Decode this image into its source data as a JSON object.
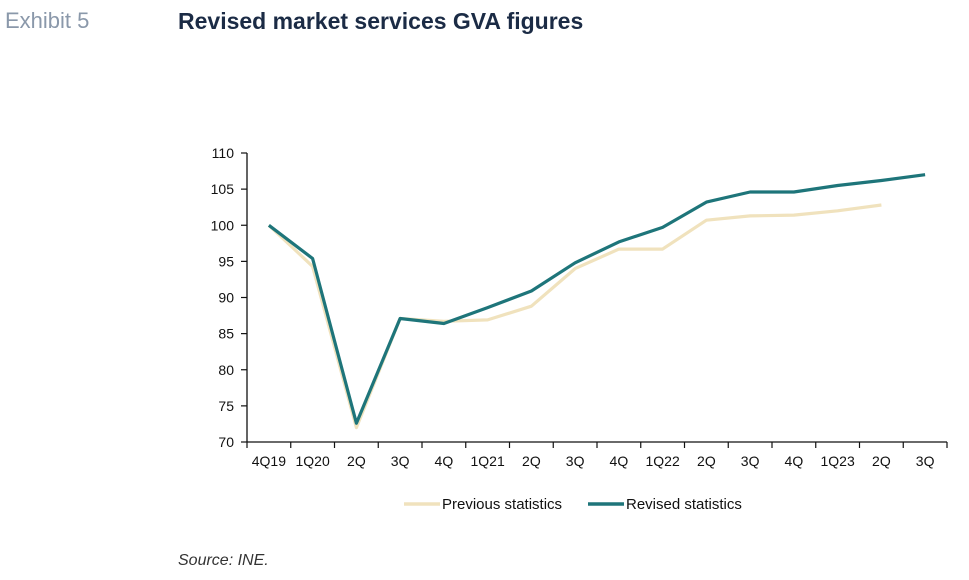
{
  "header": {
    "exhibit": "Exhibit 5",
    "title": "Revised market services GVA figures"
  },
  "source": "Source: INE.",
  "chart_data": {
    "type": "line",
    "title": "Revised market services GVA figures",
    "xlabel": "",
    "ylabel": "",
    "categories": [
      "4Q19",
      "1Q20",
      "2Q",
      "3Q",
      "4Q",
      "1Q21",
      "2Q",
      "3Q",
      "4Q",
      "1Q22",
      "2Q",
      "3Q",
      "4Q",
      "1Q23",
      "2Q",
      "3Q"
    ],
    "ylim": [
      70,
      110
    ],
    "yticks": [
      70,
      75,
      80,
      85,
      90,
      95,
      100,
      105,
      110
    ],
    "grid": false,
    "legend_position": "bottom",
    "series": [
      {
        "name": "Previous statistics",
        "color": "#f0e2bd",
        "values": [
          100,
          94.3,
          72.0,
          87.1,
          86.7,
          86.9,
          88.8,
          94.0,
          96.7,
          96.7,
          100.7,
          101.3,
          101.4,
          102.0,
          102.8,
          null
        ]
      },
      {
        "name": "Revised statistics",
        "color": "#1e757a",
        "values": [
          100,
          95.4,
          72.6,
          87.1,
          86.4,
          88.6,
          90.9,
          94.8,
          97.7,
          99.7,
          103.2,
          104.6,
          104.6,
          105.5,
          106.2,
          107.0
        ]
      }
    ]
  }
}
